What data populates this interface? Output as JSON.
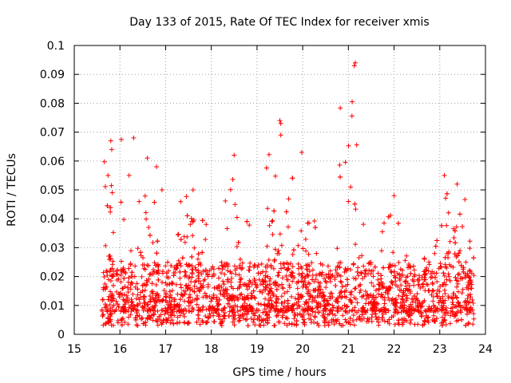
{
  "chart_data": {
    "type": "scatter",
    "title": "Day 133 of 2015, Rate Of TEC Index for receiver xmis",
    "xlabel": "GPS time / hours",
    "ylabel": "ROTI / TECUs",
    "xlim": [
      15,
      24
    ],
    "ylim": [
      0,
      0.1
    ],
    "xticks": [
      15,
      16,
      17,
      18,
      19,
      20,
      21,
      22,
      23,
      24
    ],
    "xtick_labels": [
      "15",
      "16",
      "17",
      "18",
      "19",
      "20",
      "21",
      "22",
      "23",
      "24"
    ],
    "yticks": [
      0,
      0.01,
      0.02,
      0.03,
      0.04,
      0.05,
      0.06,
      0.07,
      0.08,
      0.09,
      0.1
    ],
    "ytick_labels": [
      "0",
      "0.01",
      "0.02",
      "0.03",
      "0.04",
      "0.05",
      "0.06",
      "0.07",
      "0.08",
      "0.09",
      "0.1"
    ],
    "grid": true,
    "marker": "+",
    "color": "#ff0000",
    "x_range_of_data": [
      15.6,
      23.75
    ],
    "series": [
      {
        "name": "ROTI",
        "notable_points": [
          {
            "x": 21.13,
            "y": 0.093
          },
          {
            "x": 21.15,
            "y": 0.094
          },
          {
            "x": 19.5,
            "y": 0.074
          },
          {
            "x": 19.52,
            "y": 0.073
          },
          {
            "x": 19.52,
            "y": 0.069
          },
          {
            "x": 16.3,
            "y": 0.068
          },
          {
            "x": 15.8,
            "y": 0.067
          },
          {
            "x": 15.82,
            "y": 0.064
          },
          {
            "x": 19.98,
            "y": 0.063
          },
          {
            "x": 16.6,
            "y": 0.061
          },
          {
            "x": 18.5,
            "y": 0.062
          },
          {
            "x": 16.8,
            "y": 0.058
          },
          {
            "x": 16.2,
            "y": 0.055
          },
          {
            "x": 23.1,
            "y": 0.055
          },
          {
            "x": 21.05,
            "y": 0.051
          },
          {
            "x": 23.38,
            "y": 0.052
          },
          {
            "x": 16.92,
            "y": 0.05
          },
          {
            "x": 22.0,
            "y": 0.048
          },
          {
            "x": 21.0,
            "y": 0.046
          },
          {
            "x": 17.6,
            "y": 0.05
          }
        ],
        "baseline_band": {
          "y_min": 0.003,
          "y_typical_low": 0.008,
          "y_typical_high": 0.025
        },
        "burst_windows_hours": [
          {
            "x": 15.8,
            "peak": 0.067
          },
          {
            "x": 16.5,
            "peak": 0.061
          },
          {
            "x": 17.6,
            "peak": 0.05
          },
          {
            "x": 18.5,
            "peak": 0.062
          },
          {
            "x": 19.5,
            "peak": 0.074
          },
          {
            "x": 20.1,
            "peak": 0.045
          },
          {
            "x": 21.1,
            "peak": 0.094
          },
          {
            "x": 22.0,
            "peak": 0.048
          },
          {
            "x": 23.1,
            "peak": 0.055
          },
          {
            "x": 23.4,
            "peak": 0.052
          }
        ]
      }
    ]
  }
}
